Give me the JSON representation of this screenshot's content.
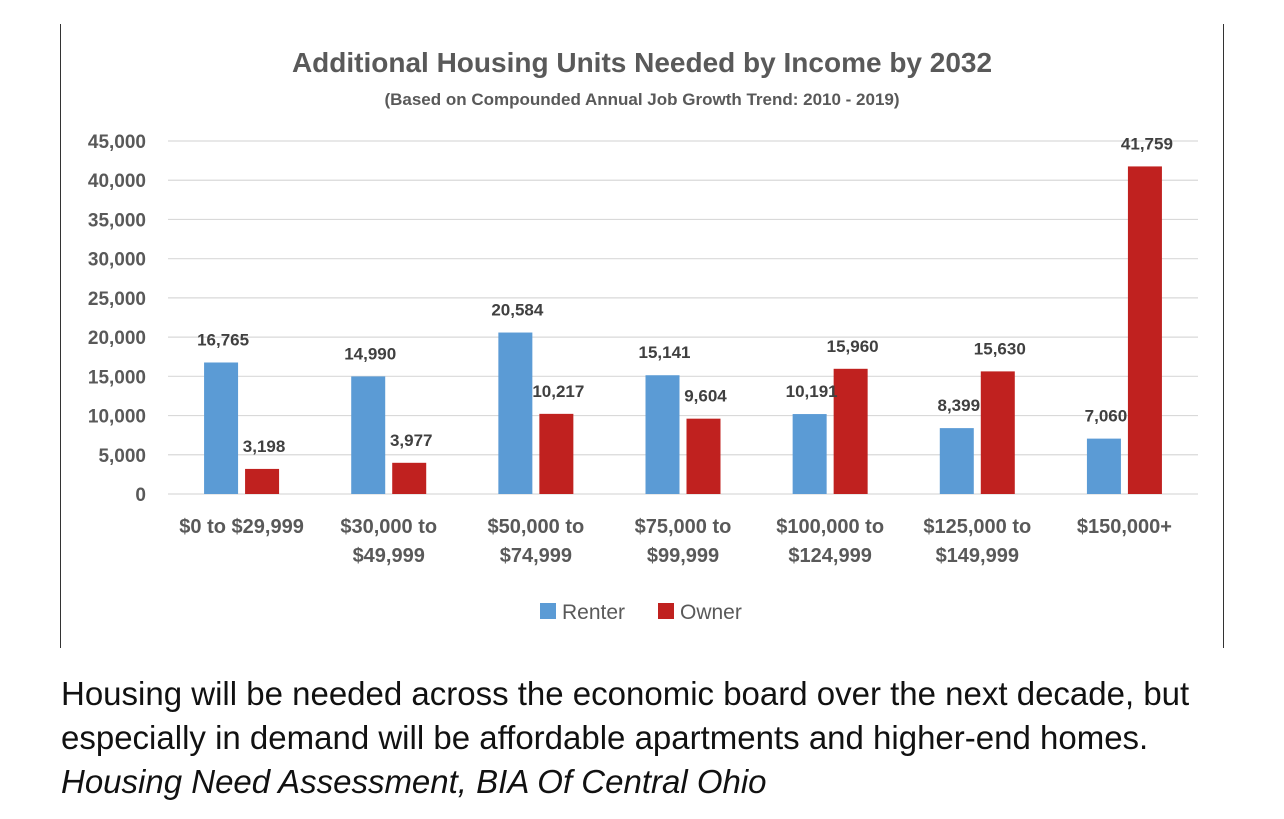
{
  "chart_data": {
    "type": "bar",
    "title": "Additional Housing Units Needed by Income by 2032",
    "subtitle": "(Based on Compounded Annual Job Growth Trend: 2010 - 2019)",
    "categories": [
      [
        "$0 to $29,999"
      ],
      [
        "$30,000 to",
        "$49,999"
      ],
      [
        "$50,000 to",
        "$74,999"
      ],
      [
        "$75,000 to",
        "$99,999"
      ],
      [
        "$100,000 to",
        "$124,999"
      ],
      [
        "$125,000 to",
        "$149,999"
      ],
      [
        "$150,000+"
      ]
    ],
    "series": [
      {
        "name": "Renter",
        "color": "#5b9bd5",
        "values": [
          16765,
          14990,
          20584,
          15141,
          10191,
          8399,
          7060
        ],
        "labels": [
          "16,765",
          "14,990",
          "20,584",
          "15,141",
          "10,191",
          "8,399",
          "7,060"
        ]
      },
      {
        "name": "Owner",
        "color": "#c0211f",
        "values": [
          3198,
          3977,
          10217,
          9604,
          15960,
          15630,
          41759
        ],
        "labels": [
          "3,198",
          "3,977",
          "10,217",
          "9,604",
          "15,960",
          "15,630",
          "41,759"
        ]
      }
    ],
    "ylim": [
      0,
      45000
    ],
    "yticks": [
      "0",
      "5,000",
      "10,000",
      "15,000",
      "20,000",
      "25,000",
      "30,000",
      "35,000",
      "40,000",
      "45,000"
    ],
    "grid": true,
    "legend": "bottom-center"
  },
  "caption": {
    "text": "Housing will be needed across the economic board over the next decade, but especially in demand will be affordable apartments and higher-end homes. ",
    "source": "Housing Need Assessment, BIA Of Central Ohio"
  }
}
